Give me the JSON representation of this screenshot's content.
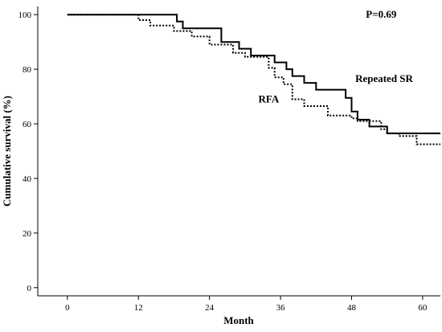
{
  "chart_data": {
    "type": "line",
    "subtype": "kaplan-meier step curve",
    "xlabel": "Month",
    "ylabel": "Cumulative survival (%)",
    "xlim": [
      -5,
      63
    ],
    "ylim": [
      -3,
      103
    ],
    "xticks": [
      0,
      12,
      24,
      36,
      48,
      60
    ],
    "yticks": [
      0,
      20,
      40,
      60,
      80,
      100
    ],
    "grid": false,
    "legend": "none (series labelled inline)",
    "annotations": [
      {
        "id": "p-value",
        "text": "P=0.69",
        "x": 53,
        "y": 100
      }
    ],
    "series": [
      {
        "name": "Repeated SR",
        "label_at": {
          "x": 53.5,
          "y": 76.5
        },
        "style": "solid",
        "color": "#000000",
        "x": [
          0,
          18.5,
          19.5,
          26,
          29,
          31,
          35,
          37,
          38,
          40,
          42,
          47,
          48,
          49,
          51,
          54,
          63
        ],
        "y": [
          100,
          97.5,
          95,
          90,
          87.5,
          85,
          82.5,
          80,
          77.5,
          75,
          72.5,
          69.5,
          64.5,
          61.5,
          59,
          56.5,
          56.5
        ]
      },
      {
        "name": "RFA",
        "label_at": {
          "x": 34,
          "y": 69
        },
        "style": "dotted",
        "color": "#000000",
        "x": [
          0,
          12,
          14,
          18,
          21,
          24,
          28,
          30,
          34,
          35,
          36.5,
          38,
          40,
          44,
          48,
          49,
          53,
          54,
          56,
          59,
          63
        ],
        "y": [
          100,
          98,
          96,
          94,
          92,
          89,
          86,
          84.5,
          80.5,
          77,
          74.5,
          69,
          66.5,
          63,
          62,
          61,
          58,
          56.5,
          55.5,
          52.5,
          52.5
        ]
      }
    ]
  }
}
